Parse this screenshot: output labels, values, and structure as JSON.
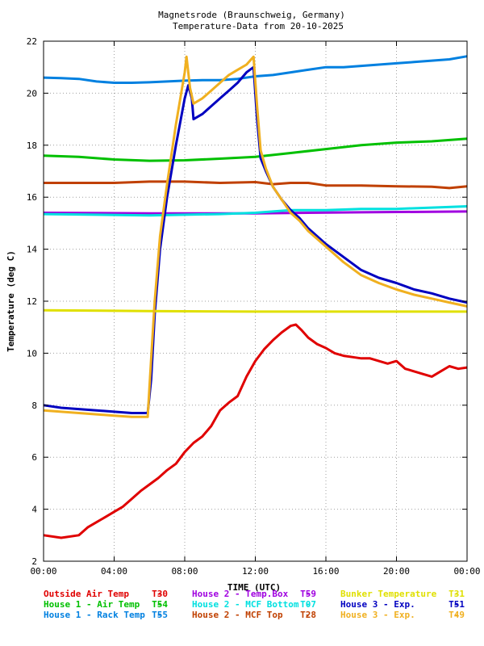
{
  "chart_data": {
    "type": "line",
    "title": [
      "Magnetsrode (Braunschweig, Germany)",
      "Temperature-Data from 20-10-2025"
    ],
    "xlabel": "TIME (UTC)",
    "ylabel": "Temperature (deg C)",
    "xlim": [
      0,
      24
    ],
    "ylim": [
      2,
      22
    ],
    "x_ticks": [
      0,
      4,
      8,
      12,
      16,
      20,
      24
    ],
    "x_tick_labels": [
      "00:00",
      "04:00",
      "08:00",
      "12:00",
      "16:00",
      "20:00",
      "00:00"
    ],
    "y_ticks": [
      2,
      4,
      6,
      8,
      10,
      12,
      14,
      16,
      18,
      20,
      22
    ],
    "grid": true,
    "legend_position": "bottom",
    "series": [
      {
        "name": "Outside Air Temp",
        "code": "T30",
        "color": "#e00000",
        "points": [
          [
            0,
            3.0
          ],
          [
            1,
            2.9
          ],
          [
            2,
            3.0
          ],
          [
            2.5,
            3.3
          ],
          [
            3,
            3.5
          ],
          [
            3.5,
            3.7
          ],
          [
            4,
            3.9
          ],
          [
            4.5,
            4.1
          ],
          [
            5,
            4.4
          ],
          [
            5.5,
            4.7
          ],
          [
            6,
            4.95
          ],
          [
            6.5,
            5.2
          ],
          [
            7,
            5.5
          ],
          [
            7.5,
            5.75
          ],
          [
            8,
            6.2
          ],
          [
            8.5,
            6.55
          ],
          [
            9,
            6.8
          ],
          [
            9.5,
            7.2
          ],
          [
            10,
            7.8
          ],
          [
            10.5,
            8.1
          ],
          [
            11,
            8.35
          ],
          [
            11.5,
            9.1
          ],
          [
            12,
            9.7
          ],
          [
            12.5,
            10.15
          ],
          [
            13,
            10.5
          ],
          [
            13.5,
            10.8
          ],
          [
            14,
            11.05
          ],
          [
            14.3,
            11.1
          ],
          [
            14.6,
            10.9
          ],
          [
            15,
            10.6
          ],
          [
            15.5,
            10.35
          ],
          [
            16,
            10.2
          ],
          [
            16.5,
            10.0
          ],
          [
            17,
            9.9
          ],
          [
            17.5,
            9.85
          ],
          [
            18,
            9.8
          ],
          [
            18.5,
            9.8
          ],
          [
            19,
            9.7
          ],
          [
            19.5,
            9.6
          ],
          [
            20,
            9.7
          ],
          [
            20.5,
            9.4
          ],
          [
            21,
            9.3
          ],
          [
            21.5,
            9.2
          ],
          [
            22,
            9.1
          ],
          [
            22.5,
            9.3
          ],
          [
            23,
            9.5
          ],
          [
            23.5,
            9.4
          ],
          [
            24,
            9.45
          ]
        ]
      },
      {
        "name": "House 1 - Air  Temp",
        "code": "T54",
        "color": "#00c000",
        "points": [
          [
            0,
            17.6
          ],
          [
            2,
            17.55
          ],
          [
            4,
            17.45
          ],
          [
            6,
            17.4
          ],
          [
            8,
            17.42
          ],
          [
            10,
            17.48
          ],
          [
            12,
            17.55
          ],
          [
            14,
            17.7
          ],
          [
            16,
            17.85
          ],
          [
            18,
            18.0
          ],
          [
            20,
            18.1
          ],
          [
            22,
            18.15
          ],
          [
            24,
            18.25
          ]
        ]
      },
      {
        "name": "House 1 - Rack Temp",
        "code": "T55",
        "color": "#0080e0",
        "points": [
          [
            0,
            20.6
          ],
          [
            1,
            20.58
          ],
          [
            2,
            20.55
          ],
          [
            3,
            20.45
          ],
          [
            4,
            20.4
          ],
          [
            5,
            20.4
          ],
          [
            6,
            20.42
          ],
          [
            7,
            20.45
          ],
          [
            8,
            20.48
          ],
          [
            9,
            20.5
          ],
          [
            10,
            20.5
          ],
          [
            11,
            20.55
          ],
          [
            12,
            20.65
          ],
          [
            13,
            20.7
          ],
          [
            14,
            20.8
          ],
          [
            15,
            20.9
          ],
          [
            16,
            21.0
          ],
          [
            17,
            21.0
          ],
          [
            18,
            21.05
          ],
          [
            19,
            21.1
          ],
          [
            20,
            21.15
          ],
          [
            21,
            21.2
          ],
          [
            22,
            21.25
          ],
          [
            23,
            21.3
          ],
          [
            24,
            21.42
          ]
        ]
      },
      {
        "name": "House 2 - Temp.Box",
        "code": "T59",
        "color": "#a000e0",
        "points": [
          [
            0,
            15.4
          ],
          [
            6,
            15.38
          ],
          [
            12,
            15.38
          ],
          [
            18,
            15.42
          ],
          [
            24,
            15.45
          ]
        ]
      },
      {
        "name": "House 2 - MCF Bottom",
        "code": "T07",
        "color": "#00e0e0",
        "points": [
          [
            0,
            15.35
          ],
          [
            6,
            15.3
          ],
          [
            10,
            15.35
          ],
          [
            12,
            15.4
          ],
          [
            13,
            15.45
          ],
          [
            14,
            15.5
          ],
          [
            16,
            15.5
          ],
          [
            18,
            15.55
          ],
          [
            20,
            15.55
          ],
          [
            22,
            15.6
          ],
          [
            24,
            15.65
          ]
        ]
      },
      {
        "name": "House 2 - MCF Top",
        "code": "T28",
        "color": "#c04000",
        "points": [
          [
            0,
            16.55
          ],
          [
            2,
            16.55
          ],
          [
            4,
            16.55
          ],
          [
            6,
            16.6
          ],
          [
            8,
            16.6
          ],
          [
            10,
            16.55
          ],
          [
            12,
            16.58
          ],
          [
            13,
            16.5
          ],
          [
            14,
            16.55
          ],
          [
            15,
            16.55
          ],
          [
            16,
            16.45
          ],
          [
            18,
            16.45
          ],
          [
            20,
            16.42
          ],
          [
            22,
            16.4
          ],
          [
            23,
            16.35
          ],
          [
            24,
            16.42
          ]
        ]
      },
      {
        "name": "House 3 - Exp.",
        "code": "T51",
        "color": "#0000c0",
        "points": [
          [
            0,
            8.0
          ],
          [
            1,
            7.9
          ],
          [
            2,
            7.85
          ],
          [
            3,
            7.8
          ],
          [
            4,
            7.75
          ],
          [
            5,
            7.7
          ],
          [
            5.9,
            7.7
          ],
          [
            6.1,
            9.0
          ],
          [
            6.3,
            11.5
          ],
          [
            6.6,
            14.0
          ],
          [
            7,
            16.0
          ],
          [
            7.5,
            18.0
          ],
          [
            8,
            19.8
          ],
          [
            8.2,
            20.3
          ],
          [
            8.4,
            19.8
          ],
          [
            8.5,
            19.0
          ],
          [
            9,
            19.2
          ],
          [
            9.5,
            19.5
          ],
          [
            10,
            19.8
          ],
          [
            10.5,
            20.1
          ],
          [
            11,
            20.4
          ],
          [
            11.5,
            20.8
          ],
          [
            11.9,
            21.0
          ],
          [
            12.1,
            19.0
          ],
          [
            12.3,
            17.5
          ],
          [
            12.6,
            17.0
          ],
          [
            13,
            16.4
          ],
          [
            13.5,
            15.9
          ],
          [
            14,
            15.5
          ],
          [
            14.5,
            15.2
          ],
          [
            15,
            14.8
          ],
          [
            16,
            14.2
          ],
          [
            17,
            13.7
          ],
          [
            18,
            13.2
          ],
          [
            19,
            12.9
          ],
          [
            20,
            12.7
          ],
          [
            21,
            12.45
          ],
          [
            22,
            12.3
          ],
          [
            23,
            12.1
          ],
          [
            24,
            11.95
          ]
        ]
      },
      {
        "name": "Bunker Temperature",
        "code": "T31",
        "color": "#e0e000",
        "points": [
          [
            0,
            11.65
          ],
          [
            6,
            11.62
          ],
          [
            12,
            11.6
          ],
          [
            18,
            11.6
          ],
          [
            24,
            11.6
          ]
        ]
      },
      {
        "name": "House 3 - Exp.",
        "code": "T49",
        "color": "#f0b020",
        "points": [
          [
            0,
            7.8
          ],
          [
            1,
            7.75
          ],
          [
            2,
            7.7
          ],
          [
            3,
            7.65
          ],
          [
            4,
            7.6
          ],
          [
            5,
            7.55
          ],
          [
            5.9,
            7.55
          ],
          [
            6.1,
            9.8
          ],
          [
            6.3,
            12.0
          ],
          [
            6.6,
            14.5
          ],
          [
            7,
            16.5
          ],
          [
            7.5,
            18.8
          ],
          [
            8,
            20.8
          ],
          [
            8.1,
            21.4
          ],
          [
            8.3,
            20.2
          ],
          [
            8.5,
            19.6
          ],
          [
            9,
            19.8
          ],
          [
            9.5,
            20.1
          ],
          [
            10,
            20.4
          ],
          [
            10.5,
            20.7
          ],
          [
            11,
            20.9
          ],
          [
            11.5,
            21.1
          ],
          [
            11.9,
            21.4
          ],
          [
            12.1,
            19.5
          ],
          [
            12.3,
            17.8
          ],
          [
            12.6,
            17.1
          ],
          [
            13,
            16.4
          ],
          [
            13.5,
            15.9
          ],
          [
            14,
            15.4
          ],
          [
            14.5,
            15.1
          ],
          [
            15,
            14.7
          ],
          [
            16,
            14.1
          ],
          [
            17,
            13.5
          ],
          [
            18,
            13.0
          ],
          [
            19,
            12.7
          ],
          [
            20,
            12.45
          ],
          [
            21,
            12.25
          ],
          [
            22,
            12.1
          ],
          [
            23,
            11.95
          ],
          [
            24,
            11.8
          ]
        ]
      }
    ]
  },
  "legend": {
    "rows": [
      [
        {
          "label": "Outside Air Temp",
          "sep": "-",
          "code": "T30",
          "color": "#e00000"
        },
        {
          "label": "House 2 - Temp.Box",
          "sep": "-",
          "code": "T59",
          "color": "#a000e0"
        },
        {
          "label": "Bunker Temperature",
          "sep": "-",
          "code": "T31",
          "color": "#e0e000"
        }
      ],
      [
        {
          "label": "House 1 - Air  Temp",
          "sep": "-",
          "code": "T54",
          "color": "#00c000"
        },
        {
          "label": "House 2 - MCF Bottom",
          "sep": "-",
          "code": "T07",
          "color": "#00e0e0"
        },
        {
          "label": "House 3 - Exp.",
          "sep": "-",
          "code": "T51",
          "color": "#0000c0"
        }
      ],
      [
        {
          "label": "House 1 - Rack Temp",
          "sep": "-",
          "code": "T55",
          "color": "#0080e0"
        },
        {
          "label": "House 2 - MCF Top",
          "sep": "-",
          "code": "T28",
          "color": "#c04000"
        },
        {
          "label": "House 3 - Exp.",
          "sep": "-",
          "code": "T49",
          "color": "#f0b020"
        }
      ]
    ]
  }
}
